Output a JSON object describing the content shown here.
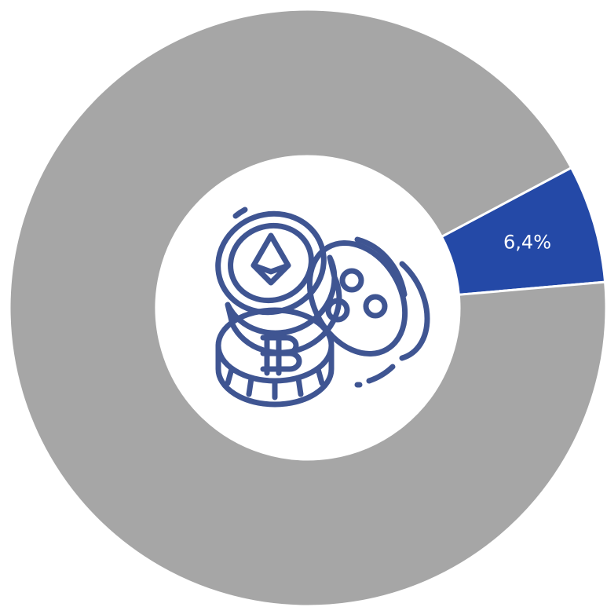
{
  "chart_data": {
    "type": "donut",
    "values": [
      6.4,
      93.6
    ],
    "value_labels": [
      "6,4%",
      null
    ],
    "colors": [
      "#2449a7",
      "#a6a6a6"
    ]
  }
}
